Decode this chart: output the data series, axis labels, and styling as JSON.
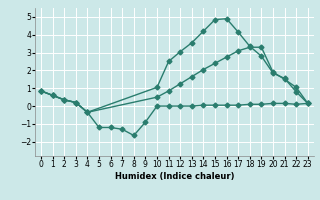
{
  "title": "",
  "xlabel": "Humidex (Indice chaleur)",
  "ylabel": "",
  "background_color": "#cce8e8",
  "grid_color": "#ffffff",
  "line_color": "#2a7d6e",
  "xlim": [
    -0.5,
    23.5
  ],
  "ylim": [
    -2.8,
    5.5
  ],
  "yticks": [
    -2,
    -1,
    0,
    1,
    2,
    3,
    4,
    5
  ],
  "xticks": [
    0,
    1,
    2,
    3,
    4,
    5,
    6,
    7,
    8,
    9,
    10,
    11,
    12,
    13,
    14,
    15,
    16,
    17,
    18,
    19,
    20,
    21,
    22,
    23
  ],
  "line1_x": [
    0,
    1,
    2,
    3,
    4,
    5,
    6,
    7,
    8,
    9,
    10,
    11,
    12,
    13,
    14,
    15,
    16,
    17,
    18,
    19,
    20,
    21,
    22,
    23
  ],
  "line1_y": [
    0.85,
    0.6,
    0.35,
    0.2,
    -0.35,
    -1.2,
    -1.2,
    -1.3,
    -1.65,
    -0.9,
    0.0,
    0.0,
    0.0,
    0.0,
    0.05,
    0.05,
    0.05,
    0.05,
    0.1,
    0.1,
    0.15,
    0.15,
    0.1,
    0.15
  ],
  "line2_x": [
    0,
    1,
    2,
    3,
    4,
    10,
    11,
    12,
    13,
    14,
    15,
    16,
    17,
    18,
    19,
    20,
    21,
    22,
    23
  ],
  "line2_y": [
    0.85,
    0.6,
    0.35,
    0.2,
    -0.35,
    1.05,
    2.5,
    3.05,
    3.55,
    4.2,
    4.85,
    4.9,
    4.15,
    3.35,
    2.8,
    1.85,
    1.55,
    0.8,
    0.15
  ],
  "line3_x": [
    0,
    1,
    2,
    3,
    4,
    10,
    11,
    12,
    13,
    14,
    15,
    16,
    17,
    18,
    19,
    20,
    21,
    22,
    23
  ],
  "line3_y": [
    0.85,
    0.6,
    0.35,
    0.2,
    -0.35,
    0.5,
    0.85,
    1.25,
    1.65,
    2.05,
    2.4,
    2.75,
    3.1,
    3.3,
    3.3,
    1.9,
    1.5,
    1.05,
    0.15
  ],
  "tick_fontsize": 5.5,
  "xlabel_fontsize": 6.0,
  "marker_size": 2.5,
  "linewidth": 1.0
}
